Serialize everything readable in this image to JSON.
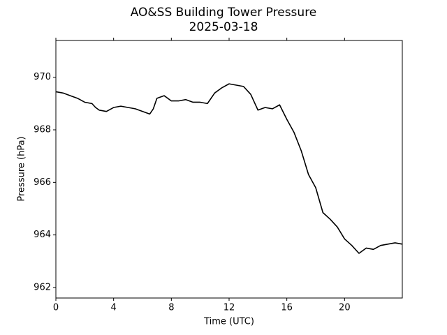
{
  "chart_data": {
    "type": "line",
    "title": "AO&SS Building Tower Pressure",
    "subtitle": "2025-03-18",
    "x_label": "Time (UTC)",
    "y_label": "Pressure (hPa)",
    "x": [
      0,
      0.5,
      1,
      1.5,
      2,
      2.5,
      2.75,
      3,
      3.5,
      4,
      4.5,
      5,
      5.5,
      6,
      6.5,
      6.75,
      7,
      7.5,
      8,
      8.5,
      9,
      9.5,
      10,
      10.5,
      11,
      11.5,
      12,
      12.5,
      13,
      13.5,
      14,
      14.5,
      15,
      15.5,
      16,
      16.5,
      17,
      17.5,
      18,
      18.5,
      19,
      19.5,
      20,
      20.5,
      21,
      21.5,
      22,
      22.5,
      23,
      23.5,
      24
    ],
    "series": [
      {
        "name": "Pressure",
        "color": "#000000",
        "values": [
          969.45,
          969.4,
          969.3,
          969.2,
          969.05,
          969.0,
          968.85,
          968.75,
          968.7,
          968.85,
          968.9,
          968.85,
          968.8,
          968.7,
          968.6,
          968.8,
          969.2,
          969.3,
          969.1,
          969.1,
          969.15,
          969.05,
          969.05,
          969.0,
          969.4,
          969.6,
          969.75,
          969.7,
          969.65,
          969.35,
          968.75,
          968.85,
          968.8,
          968.95,
          968.4,
          967.9,
          967.2,
          966.3,
          965.8,
          964.85,
          964.6,
          964.3,
          963.85,
          963.6,
          963.3,
          963.5,
          963.45,
          963.6,
          963.65,
          963.7,
          963.65
        ]
      }
    ],
    "xlim": [
      0,
      24
    ],
    "xticks": [
      0,
      4,
      8,
      12,
      16,
      20
    ],
    "ylim": [
      961.6,
      971.4
    ],
    "yticks": [
      962,
      964,
      966,
      968,
      970
    ],
    "grid": false
  }
}
